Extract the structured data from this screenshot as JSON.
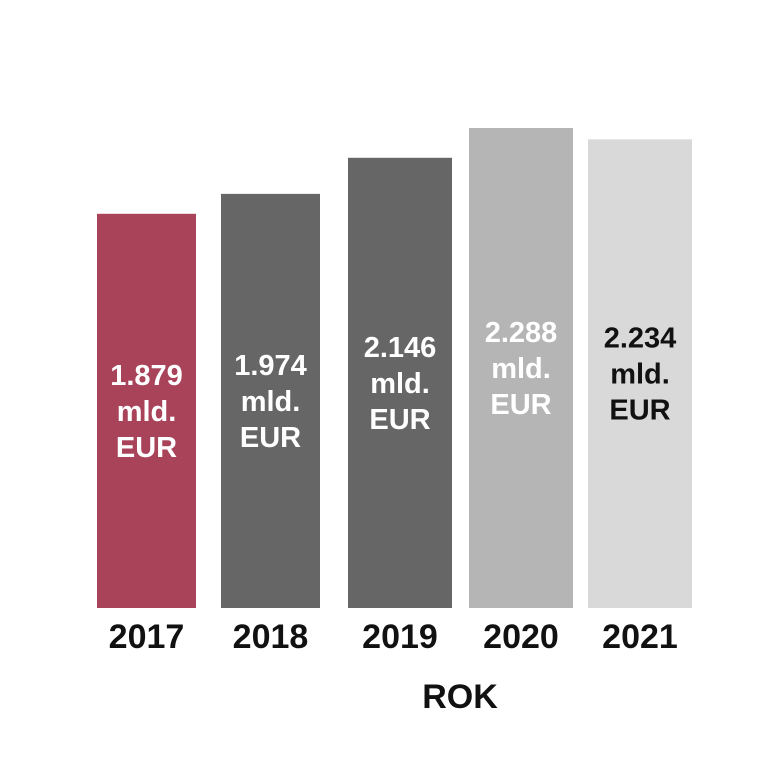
{
  "chart_data": {
    "type": "bar",
    "categories": [
      "2017",
      "2018",
      "2019",
      "2020",
      "2021"
    ],
    "values": [
      1.879,
      1.974,
      2.146,
      2.288,
      2.234
    ],
    "data_labels": [
      [
        "1.879",
        "mld.",
        "EUR"
      ],
      [
        "1.974",
        "mld.",
        "EUR"
      ],
      [
        "2.146",
        "mld.",
        "EUR"
      ],
      [
        "2.288",
        "mld.",
        "EUR"
      ],
      [
        "2.234",
        "mld.",
        "EUR"
      ]
    ],
    "bar_colors": [
      "#a8435a",
      "#666666",
      "#666666",
      "#b5b5b5",
      "#d9d9d9"
    ],
    "label_colors": [
      "#ffffff",
      "#ffffff",
      "#ffffff",
      "#ffffff",
      "#111111"
    ],
    "title": "",
    "xlabel": "ROK",
    "ylabel": "",
    "ylim": [
      0,
      2.288
    ],
    "grid": false,
    "legend": "none"
  }
}
